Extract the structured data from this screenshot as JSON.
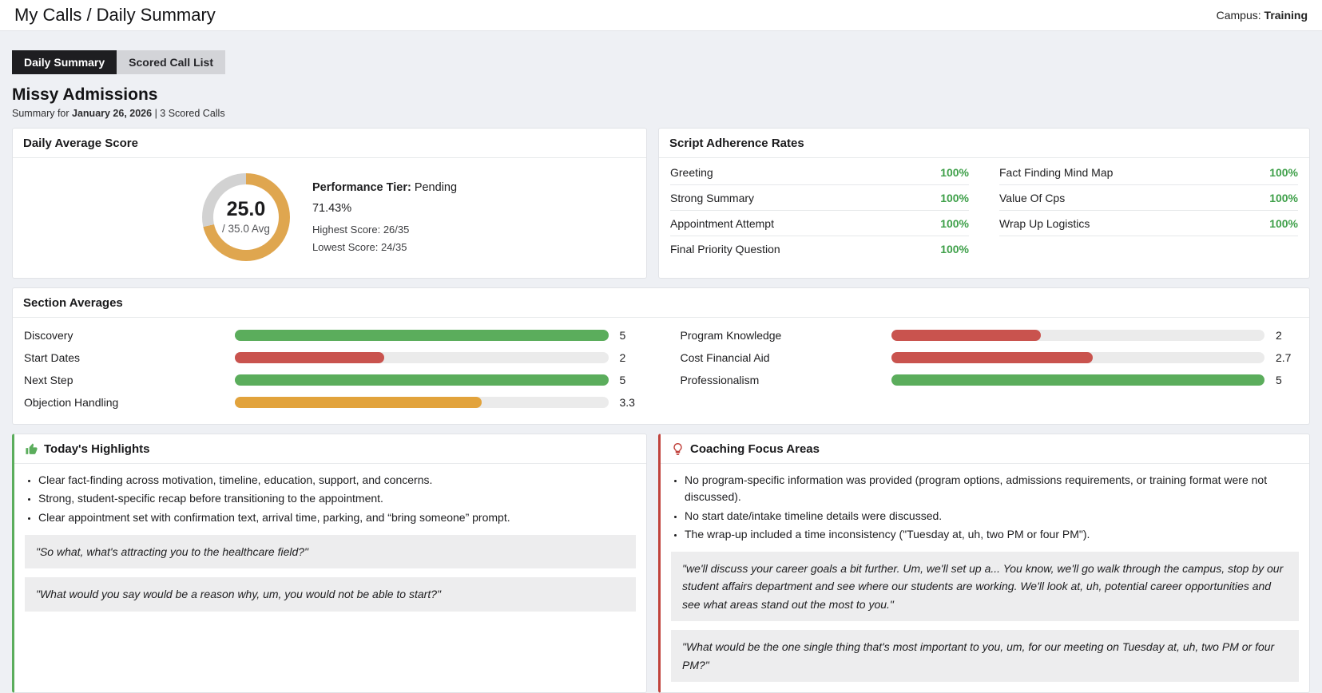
{
  "header": {
    "title": "My Calls / Daily Summary",
    "campus_label": "Campus:",
    "campus_value": "Training"
  },
  "tabs": [
    {
      "label": "Daily Summary",
      "active": true
    },
    {
      "label": "Scored Call List",
      "active": false
    }
  ],
  "profile": {
    "name": "Missy Admissions",
    "summary_prefix": "Summary for ",
    "summary_date": "January 26, 2026",
    "summary_suffix": " | 3 Scored Calls"
  },
  "daily_average_score": {
    "title": "Daily Average Score",
    "score": "25.0",
    "score_denominator": "/ 35.0 Avg",
    "performance_tier_label": "Performance Tier:",
    "performance_tier_value": " Pending",
    "percentage": "71.43%",
    "highest_score": "Highest Score: 26/35",
    "lowest_score": "Lowest Score: 24/35",
    "donut": {
      "percent": 71.43,
      "fill_color": "#dfa64f",
      "track_color": "#d2d2d2"
    }
  },
  "script_adherence": {
    "title": "Script Adherence Rates",
    "value_color": "#3fa04a",
    "columns": [
      [
        {
          "label": "Greeting",
          "value": "100%"
        },
        {
          "label": "Strong Summary",
          "value": "100%"
        },
        {
          "label": "Appointment Attempt",
          "value": "100%"
        },
        {
          "label": "Final Priority Question",
          "value": "100%"
        }
      ],
      [
        {
          "label": "Fact Finding Mind Map",
          "value": "100%"
        },
        {
          "label": "Value Of Cps",
          "value": "100%"
        },
        {
          "label": "Wrap Up Logistics",
          "value": "100%"
        }
      ]
    ]
  },
  "section_averages": {
    "title": "Section Averages",
    "max": 5,
    "track_color": "#ebebeb",
    "columns": [
      [
        {
          "label": "Discovery",
          "value": "5",
          "num": 5,
          "color": "#5bad5c"
        },
        {
          "label": "Start Dates",
          "value": "2",
          "num": 2,
          "color": "#c9534e"
        },
        {
          "label": "Next Step",
          "value": "5",
          "num": 5,
          "color": "#5bad5c"
        },
        {
          "label": "Objection Handling",
          "value": "3.3",
          "num": 3.3,
          "color": "#e2a33c"
        }
      ],
      [
        {
          "label": "Program Knowledge",
          "value": "2",
          "num": 2,
          "color": "#c9534e"
        },
        {
          "label": "Cost Financial Aid",
          "value": "2.7",
          "num": 2.7,
          "color": "#c9534e"
        },
        {
          "label": "Professionalism",
          "value": "5",
          "num": 5,
          "color": "#5bad5c"
        }
      ]
    ]
  },
  "highlights": {
    "title": "Today's Highlights",
    "icon": "thumbs-up-icon",
    "accent_color": "#5bad5c",
    "bullets": [
      "Clear fact-finding across motivation, timeline, education, support, and concerns.",
      "Strong, student-specific recap before transitioning to the appointment.",
      "Clear appointment set with confirmation text, arrival time, parking, and “bring someone” prompt."
    ],
    "quotes": [
      "\"So what, what's attracting you to the healthcare field?\"",
      "\"What would you say would be a reason why, um, you would not be able to start?\""
    ]
  },
  "coaching": {
    "title": "Coaching Focus Areas",
    "icon": "lightbulb-icon",
    "accent_color": "#c0423c",
    "bullets": [
      "No program-specific information was provided (program options, admissions requirements, or training format were not discussed).",
      "No start date/intake timeline details were discussed.",
      "The wrap-up included a time inconsistency (\"Tuesday at, uh, two PM or four PM\")."
    ],
    "quotes": [
      "\"we'll discuss your career goals a bit further. Um, we'll set up a... You know, we'll go walk through the campus, stop by our student affairs department and see where our students are working. We'll look at, uh, potential career opportunities and see what areas stand out the most to you.\"",
      "\"What would be the one single thing that's most important to you, um, for our meeting on Tuesday at, uh, two PM or four PM?\""
    ]
  }
}
